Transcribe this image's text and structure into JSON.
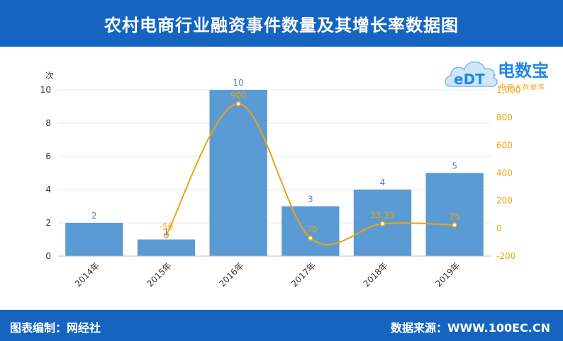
{
  "header": {
    "title": "农村电商行业融资事件数量及其增长率数据图"
  },
  "footer": {
    "left": "图表编制：网经社",
    "right": "数据来源：WWW.100EC.CN"
  },
  "logo": {
    "mark": "eDT",
    "name": "电数宝",
    "tagline": "电商大数据库"
  },
  "colors": {
    "bar": "#5b9bd5",
    "line": "#f0a30a",
    "header": "#1565c0",
    "bar_label": "#4a86c5",
    "line_label": "#f0a30a"
  },
  "chart_data": {
    "type": "bar",
    "categories": [
      "2014年",
      "2015年",
      "2016年",
      "2017年",
      "2018年",
      "2019年"
    ],
    "series": [
      {
        "name": "",
        "type": "bar",
        "axis": "left",
        "values": [
          2,
          1,
          10,
          3,
          4,
          5
        ]
      },
      {
        "name": "",
        "type": "line",
        "axis": "right",
        "values": [
          null,
          -50,
          900,
          -70,
          33.33,
          25
        ]
      }
    ],
    "bar_labels": [
      "2",
      "1",
      "10",
      "3",
      "4",
      "5"
    ],
    "line_labels": [
      "",
      "-50",
      "900",
      "-70",
      "33.33",
      "25"
    ],
    "y_left": {
      "unit": "次",
      "min": 0,
      "max": 10,
      "ticks": [
        0,
        2,
        4,
        6,
        8,
        10
      ],
      "tick_labels": [
        "0",
        "2",
        "4",
        "6",
        "8",
        "10"
      ]
    },
    "y_right": {
      "unit": "%",
      "min": -200,
      "max": 1000,
      "ticks": [
        -200,
        0,
        200,
        400,
        600,
        800,
        1000
      ],
      "tick_labels": [
        "-200",
        "0",
        "200",
        "400",
        "600",
        "800",
        "1,000"
      ]
    },
    "grid": true
  }
}
